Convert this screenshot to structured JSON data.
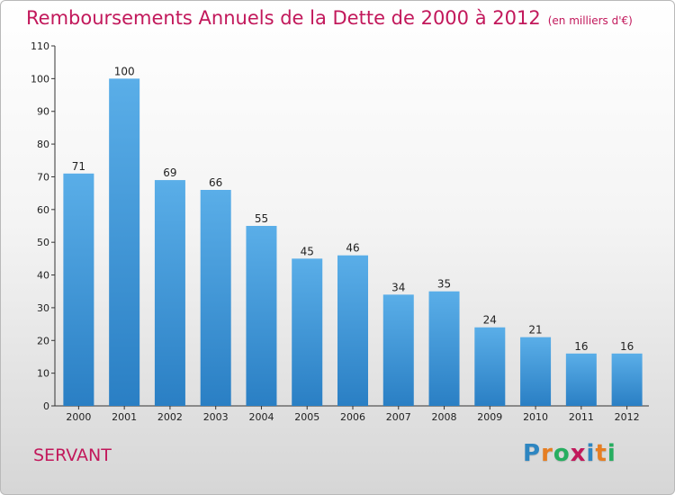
{
  "header": {
    "title": "Remboursements Annuels de la Dette de 2000 à 2012",
    "subtitle": "(en milliers d'€)"
  },
  "commune": "SERVANT",
  "logo": {
    "text": "Proxiti",
    "letters": [
      {
        "char": "P",
        "color": "#2e86c1"
      },
      {
        "char": "r",
        "color": "#e67e22"
      },
      {
        "char": "o",
        "color": "#27ae60"
      },
      {
        "char": "x",
        "color": "#c2185b"
      },
      {
        "char": "i",
        "color": "#2e86c1"
      },
      {
        "char": "t",
        "color": "#e67e22"
      },
      {
        "char": "i",
        "color": "#27ae60"
      }
    ]
  },
  "colors": {
    "title": "#c2185b",
    "bar_light": "#5aaee8",
    "bar_dark": "#2a7fc4"
  },
  "chart_data": {
    "type": "bar",
    "categories": [
      "2000",
      "2001",
      "2002",
      "2003",
      "2004",
      "2005",
      "2006",
      "2007",
      "2008",
      "2009",
      "2010",
      "2011",
      "2012"
    ],
    "values": [
      71,
      100,
      69,
      66,
      55,
      45,
      46,
      34,
      35,
      24,
      21,
      16,
      16
    ],
    "ylim": [
      0,
      110
    ],
    "yticks": [
      0,
      10,
      20,
      30,
      40,
      50,
      60,
      70,
      80,
      90,
      100,
      110
    ],
    "grid": false,
    "legend": "none"
  }
}
